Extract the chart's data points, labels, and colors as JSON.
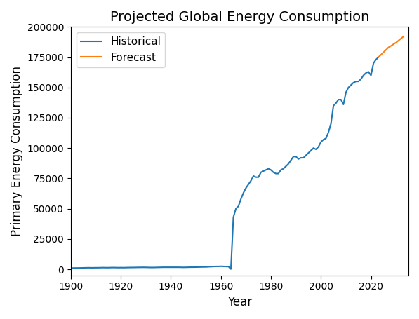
{
  "title": "Projected Global Energy Consumption",
  "xlabel": "Year",
  "ylabel": "Primary Energy Consumption",
  "historical_years": [
    1900,
    1901,
    1902,
    1903,
    1904,
    1905,
    1906,
    1907,
    1908,
    1909,
    1910,
    1911,
    1912,
    1913,
    1914,
    1915,
    1916,
    1917,
    1918,
    1919,
    1920,
    1921,
    1922,
    1923,
    1924,
    1925,
    1926,
    1927,
    1928,
    1929,
    1930,
    1931,
    1932,
    1933,
    1934,
    1935,
    1936,
    1937,
    1938,
    1939,
    1940,
    1941,
    1942,
    1943,
    1944,
    1945,
    1946,
    1947,
    1948,
    1949,
    1950,
    1951,
    1952,
    1953,
    1954,
    1955,
    1956,
    1957,
    1958,
    1959,
    1960,
    1961,
    1962,
    1963,
    1964,
    1965,
    1966,
    1967,
    1968,
    1969,
    1970,
    1971,
    1972,
    1973,
    1974,
    1975,
    1976,
    1977,
    1978,
    1979,
    1980,
    1981,
    1982,
    1983,
    1984,
    1985,
    1986,
    1987,
    1988,
    1989,
    1990,
    1991,
    1992,
    1993,
    1994,
    1995,
    1996,
    1997,
    1998,
    1999,
    2000,
    2001,
    2002,
    2003,
    2004,
    2005,
    2006,
    2007,
    2008,
    2009,
    2010,
    2011,
    2012,
    2013,
    2014,
    2015,
    2016,
    2017,
    2018,
    2019,
    2020,
    2021,
    2022,
    2023
  ],
  "historical_values": [
    1000,
    1050,
    1100,
    1100,
    1150,
    1200,
    1250,
    1300,
    1250,
    1250,
    1300,
    1300,
    1350,
    1400,
    1350,
    1350,
    1400,
    1450,
    1400,
    1350,
    1400,
    1350,
    1400,
    1450,
    1500,
    1500,
    1550,
    1600,
    1600,
    1650,
    1600,
    1550,
    1500,
    1500,
    1550,
    1600,
    1650,
    1700,
    1700,
    1700,
    1700,
    1700,
    1700,
    1700,
    1650,
    1600,
    1650,
    1700,
    1750,
    1750,
    1800,
    1850,
    1900,
    1950,
    1950,
    2100,
    2200,
    2300,
    2400,
    2400,
    2500,
    2400,
    2300,
    2300,
    200,
    43000,
    50000,
    52000,
    58000,
    63000,
    67000,
    70000,
    73000,
    77000,
    76000,
    76000,
    80000,
    81000,
    82000,
    83000,
    82000,
    80000,
    79000,
    79000,
    82000,
    83000,
    85000,
    87000,
    90000,
    93000,
    93000,
    91000,
    92000,
    92000,
    94000,
    96000,
    98000,
    100000,
    99000,
    101000,
    105000,
    107000,
    108000,
    113000,
    120000,
    135000,
    137000,
    140000,
    140000,
    136000,
    146000,
    150000,
    152000,
    154000,
    155000,
    155000,
    157000,
    160000,
    162000,
    163000,
    160000,
    170000,
    173000,
    175000
  ],
  "forecast_years": [
    2023,
    2025,
    2027,
    2030,
    2033
  ],
  "forecast_values": [
    175000,
    179000,
    183000,
    187000,
    192000
  ],
  "historical_color": "#1f77b4",
  "forecast_color": "#ff7f0e",
  "xlim": [
    1900,
    2035
  ],
  "ylim": [
    -5000,
    200000
  ],
  "yticks": [
    0,
    25000,
    50000,
    75000,
    100000,
    125000,
    150000,
    175000,
    200000
  ],
  "xticks": [
    1900,
    1920,
    1940,
    1960,
    1980,
    2000,
    2020
  ],
  "figsize": [
    5.97,
    4.55
  ],
  "dpi": 100,
  "line_width": 1.5
}
